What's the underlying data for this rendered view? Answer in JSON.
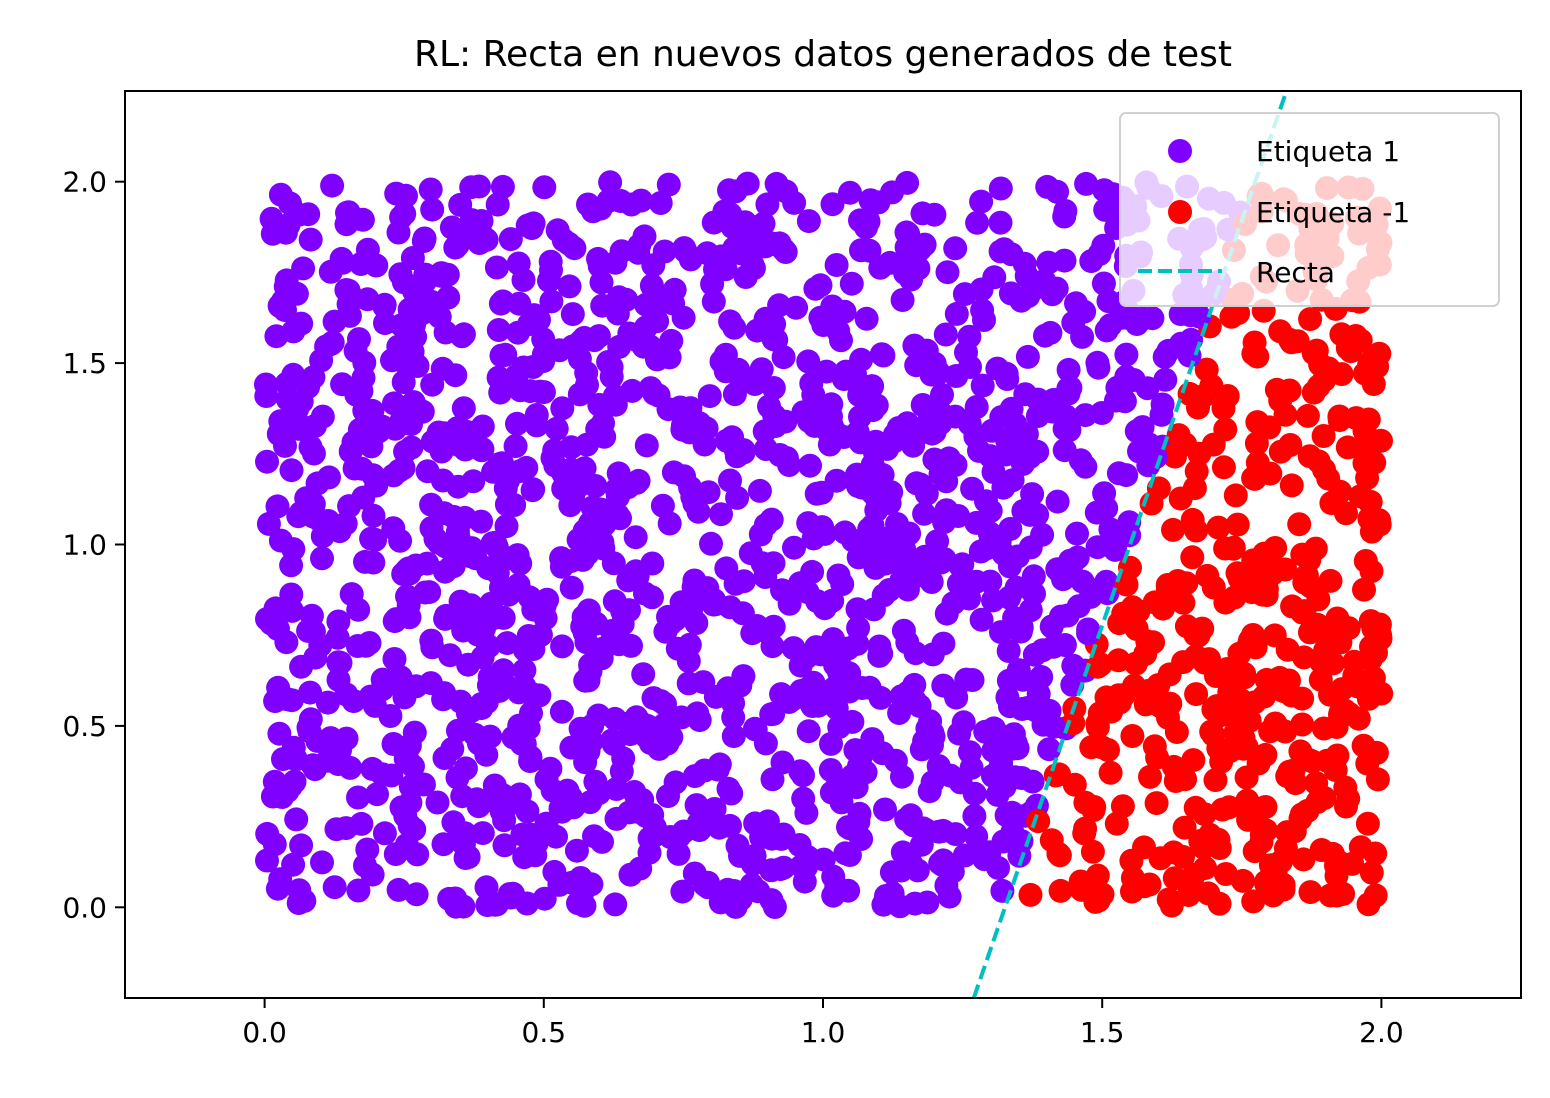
{
  "chart_data": {
    "type": "scatter",
    "title": "RL: Recta en nuevos datos generados de test",
    "xlabel": "",
    "ylabel": "",
    "xlim": [
      -0.25,
      2.25
    ],
    "ylim": [
      -0.25,
      2.25
    ],
    "x_ticks": [
      "0.0",
      "0.5",
      "1.0",
      "1.5",
      "2.0"
    ],
    "y_ticks": [
      "0.0",
      "0.5",
      "1.0",
      "1.5",
      "2.0"
    ],
    "x_tick_values": [
      0.0,
      0.5,
      1.0,
      1.5,
      2.0
    ],
    "y_tick_values": [
      0.0,
      0.5,
      1.0,
      1.5,
      2.0
    ],
    "grid": false,
    "legend_position": "top-right",
    "series": [
      {
        "name": "Etiqueta 1",
        "type": "scatter",
        "color": "#8000ff",
        "region": "above-line",
        "approx_points": 1400
      },
      {
        "name": "Etiqueta -1",
        "type": "scatter",
        "color": "#ff0000",
        "region": "below-line",
        "approx_points": 560
      },
      {
        "name": "Recta",
        "type": "line",
        "style": "dashed",
        "color": "#00bfbf",
        "x": [
          1.27,
          1.83
        ],
        "y": [
          -0.25,
          2.25
        ]
      }
    ]
  }
}
